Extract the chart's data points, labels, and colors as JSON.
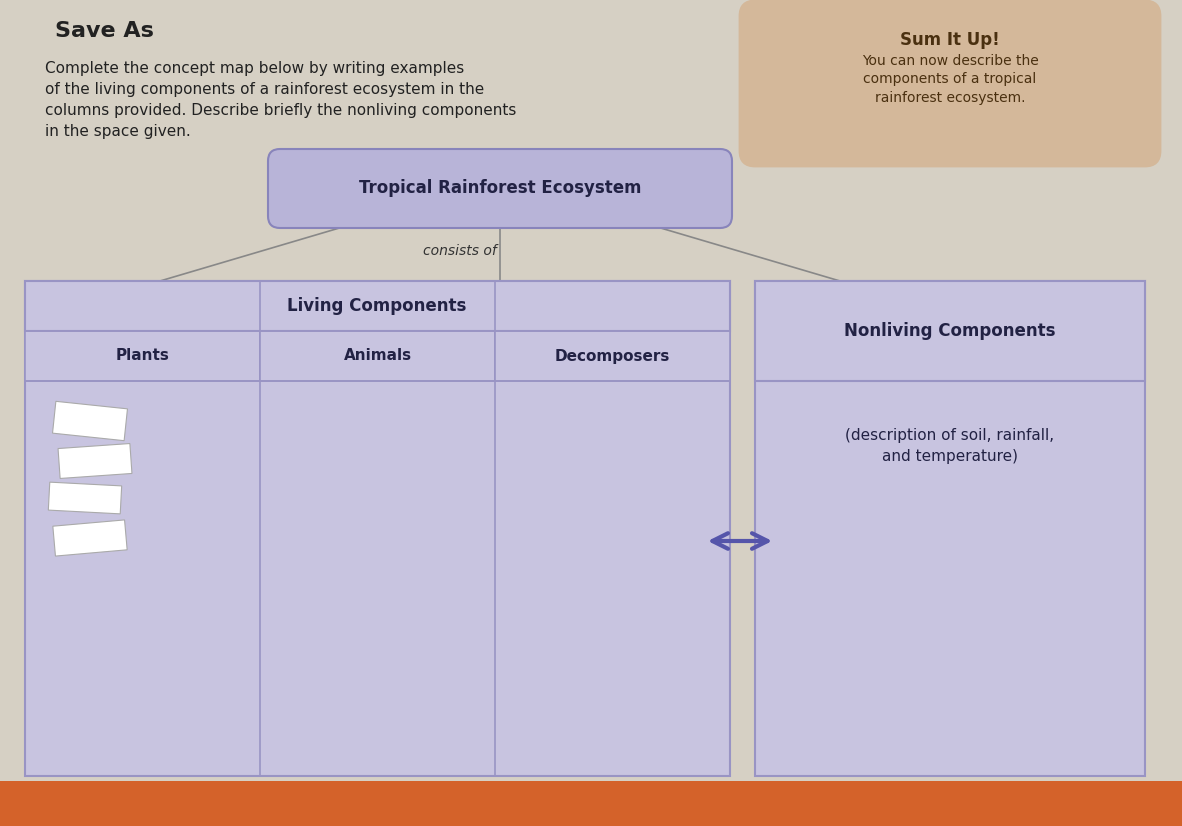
{
  "bg_color": "#d6d0c4",
  "title_text": "Save As",
  "instruction_text": "Complete the concept map below by writing examples\nof the living components of a rainforest ecosystem in the\ncolumns provided. Describe briefly the nonliving components\nin the space given.",
  "sum_it_up_title": "Sum It Up!",
  "sum_it_up_body": "You can now describe the\ncomponents of a tropical\nrainforest ecosystem.",
  "sum_it_up_bg": "#d4b89a",
  "concept_title": "Tropical Rainforest Ecosystem",
  "concept_box_bg": "#b8b4d8",
  "concept_box_border": "#8884bb",
  "consists_of_text": "consists of",
  "table_bg": "#c8c4e0",
  "table_border": "#9994c4",
  "living_header": "Living Components",
  "col1_header": "Plants",
  "col2_header": "Animals",
  "col3_header": "Decomposers",
  "nonliving_header": "Nonliving Components",
  "nonliving_body": "(description of soil, rainfall,\nand temperature)",
  "arrow_color": "#5555aa",
  "header_fontsize": 12,
  "body_fontsize": 10
}
